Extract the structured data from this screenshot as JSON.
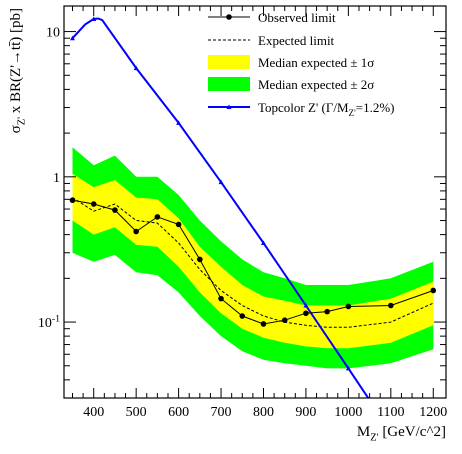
{
  "chart_data": {
    "type": "line",
    "xlabel": "M_{Z'} [GeV/c^2]",
    "ylabel": "σ_{Z'} x BR(Z'→tt̄) [pb]",
    "xlim": [
      330,
      1230
    ],
    "ylim": [
      0.03,
      15
    ],
    "yscale": "log",
    "legend_position": "top-right",
    "x_ticks": [
      400,
      500,
      600,
      700,
      800,
      900,
      1000,
      1100,
      1200
    ],
    "x_tick_labels": [
      "400",
      "500",
      "600",
      "700",
      "800",
      "900",
      "1000",
      "1100",
      "1200"
    ],
    "y_ticks": [
      0.1,
      1,
      10
    ],
    "y_tick_labels": [
      "10^{-1}",
      "1",
      "10"
    ],
    "legend": {
      "observed": "Observed limit",
      "expected": "Expected limit",
      "band1": "Median expected ± 1σ",
      "band2": "Median expected ± 2σ",
      "topcolor": "Topcolor Z' (Γ/M_{Z'}=1.2%)"
    },
    "colors": {
      "band1": "#ffff00",
      "band2": "#00ff00",
      "observed": "#000000",
      "expected": "#000000",
      "topcolor": "#0000ff"
    },
    "band_x": [
      350,
      400,
      450,
      500,
      550,
      600,
      650,
      700,
      750,
      800,
      850,
      900,
      950,
      1000,
      1100,
      1200
    ],
    "band2_upper": [
      1.6,
      1.2,
      1.4,
      1.0,
      1.0,
      0.75,
      0.5,
      0.36,
      0.27,
      0.22,
      0.2,
      0.18,
      0.18,
      0.18,
      0.2,
      0.26
    ],
    "band1_upper": [
      1.05,
      0.85,
      0.95,
      0.72,
      0.7,
      0.52,
      0.33,
      0.24,
      0.18,
      0.15,
      0.14,
      0.13,
      0.13,
      0.13,
      0.145,
      0.19
    ],
    "expected_values": [
      0.72,
      0.58,
      0.65,
      0.5,
      0.48,
      0.35,
      0.23,
      0.165,
      0.13,
      0.11,
      0.1,
      0.095,
      0.092,
      0.092,
      0.1,
      0.135
    ],
    "band1_lower": [
      0.5,
      0.4,
      0.45,
      0.34,
      0.33,
      0.24,
      0.16,
      0.115,
      0.09,
      0.078,
      0.072,
      0.068,
      0.066,
      0.066,
      0.072,
      0.095
    ],
    "band2_lower": [
      0.3,
      0.26,
      0.29,
      0.22,
      0.21,
      0.16,
      0.11,
      0.08,
      0.063,
      0.055,
      0.052,
      0.05,
      0.048,
      0.048,
      0.052,
      0.065
    ],
    "observed": {
      "x": [
        350,
        400,
        450,
        500,
        550,
        600,
        650,
        700,
        750,
        800,
        850,
        900,
        950,
        1000,
        1100,
        1200
      ],
      "y": [
        0.69,
        0.65,
        0.59,
        0.42,
        0.53,
        0.47,
        0.27,
        0.145,
        0.11,
        0.097,
        0.103,
        0.115,
        0.118,
        0.128,
        0.13,
        0.165
      ]
    },
    "topcolor": {
      "x": [
        350,
        380,
        400,
        410,
        420,
        500,
        600,
        700,
        800,
        900,
        1000,
        1050
      ],
      "y": [
        9.0,
        11.2,
        12.2,
        12.3,
        12.0,
        5.6,
        2.35,
        0.92,
        0.35,
        0.13,
        0.048,
        0.029
      ],
      "marker_x": [
        350,
        400,
        500,
        600,
        700,
        800,
        900,
        1000
      ],
      "marker_y": [
        9.0,
        12.2,
        5.6,
        2.35,
        0.92,
        0.35,
        0.13,
        0.048
      ]
    }
  }
}
